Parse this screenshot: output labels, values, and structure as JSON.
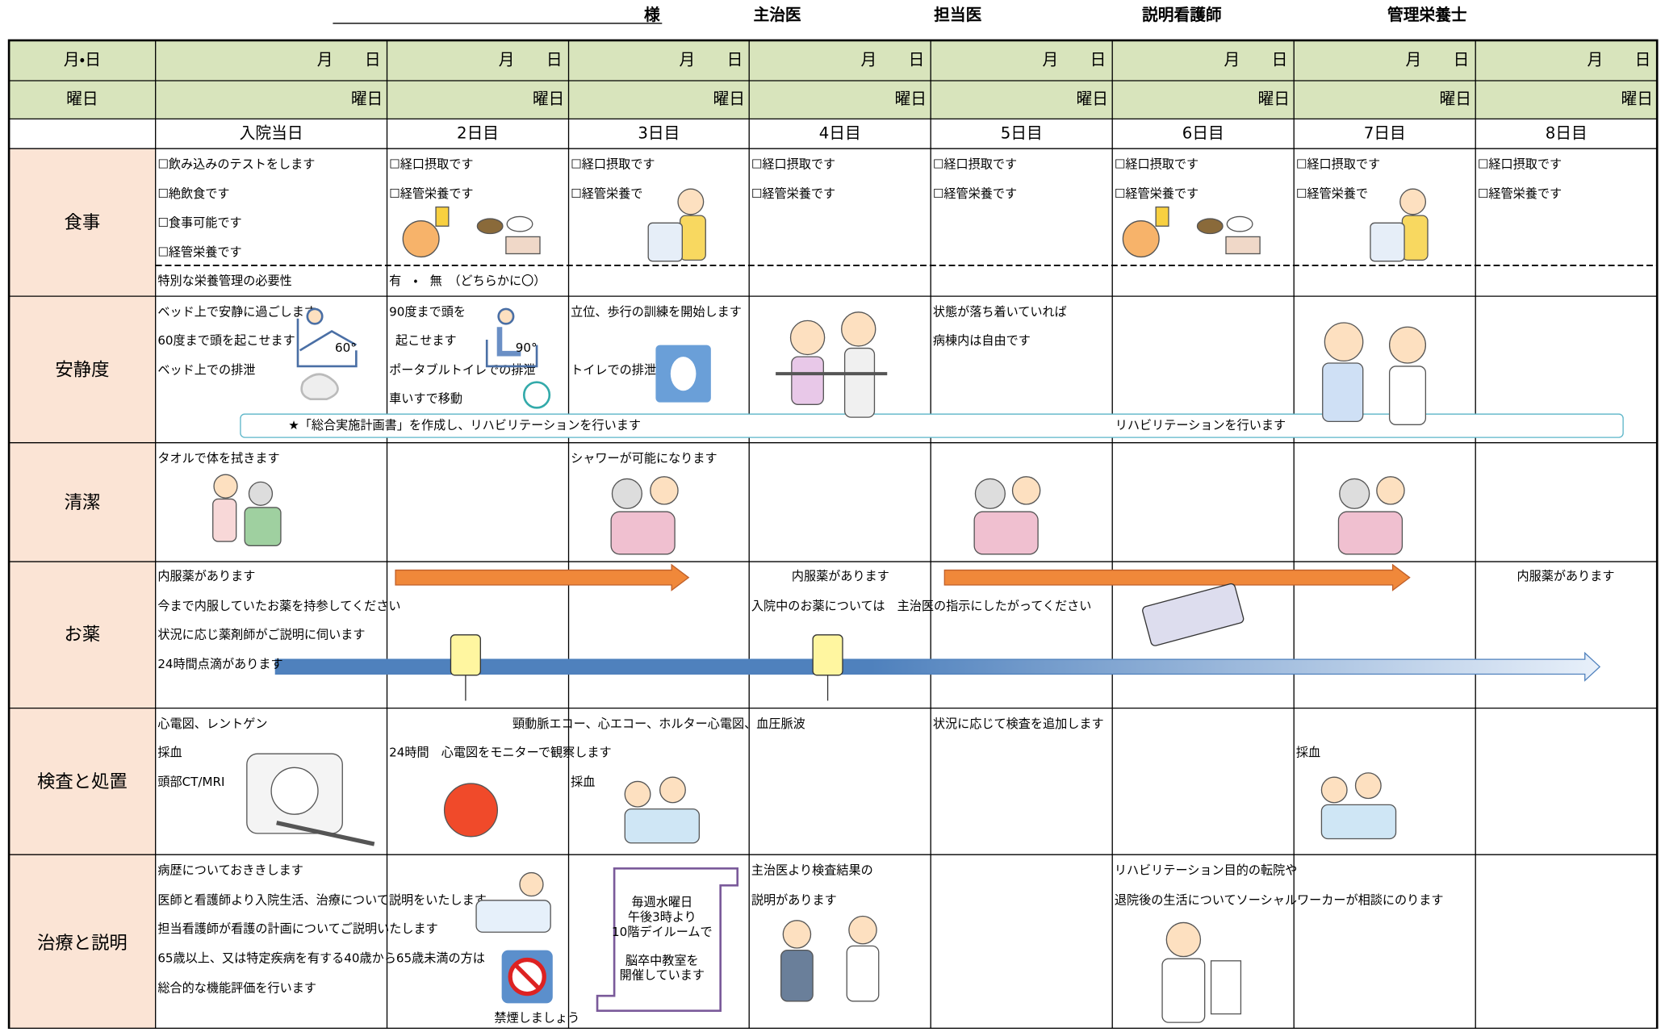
{
  "header": {
    "patient_suffix": "様",
    "doctor": "主治医",
    "physician": "担当医",
    "nurse": "説明看護師",
    "dietitian": "管理栄養士"
  },
  "table": {
    "date_label": "月・日",
    "weekday_label": "曜日",
    "columns": [
      {
        "date": "月　　日",
        "weekday": "曜日",
        "day": "入院当日"
      },
      {
        "date": "月　　日",
        "weekday": "曜日",
        "day": "2日目"
      },
      {
        "date": "月　　日",
        "weekday": "曜日",
        "day": "3日目"
      },
      {
        "date": "月　　日",
        "weekday": "曜日",
        "day": "4日目"
      },
      {
        "date": "月　　日",
        "weekday": "曜日",
        "day": "5日目"
      },
      {
        "date": "月　　日",
        "weekday": "曜日",
        "day": "6日目"
      },
      {
        "date": "月　　日",
        "weekday": "曜日",
        "day": "7日目"
      },
      {
        "date": "月　　日",
        "weekday": "曜日",
        "day": "8日目"
      }
    ],
    "meal": {
      "label": "食事",
      "cells": [
        [
          "☐飲み込みのテストをします",
          "☐絶飲食です",
          "☐食事可能です",
          "☐経管栄養です"
        ],
        [
          "☐経口摂取です",
          "☐経管栄養です"
        ],
        [
          "☐経口摂取です",
          "☐経管栄養で"
        ],
        [
          "☐経口摂取です",
          "☐経管栄養です"
        ],
        [
          "☐経口摂取です",
          "☐経管栄養です"
        ],
        [
          "☐経口摂取です",
          "☐経管栄養です"
        ],
        [
          "☐経口摂取です",
          "☐経管栄養で"
        ],
        [
          "☐経口摂取です",
          "☐経管栄養です"
        ]
      ],
      "nutrition_label": "特別な栄養管理の必要性",
      "nutrition_choice": "有　・　無　（どちらかに〇）"
    },
    "rest": {
      "label": "安静度",
      "day1": [
        "ベッド上で安静に過ごします",
        "60度まで頭を起こせます",
        "ベッド上での排泄"
      ],
      "day2": [
        "90度まで頭を",
        "起こせます",
        "ポータブルトイレでの排泄",
        "車いすで移動"
      ],
      "day3": [
        "立位、歩行の訓練を開始します",
        "トイレでの排泄"
      ],
      "day5": [
        "状態が落ち着いていれば",
        "病棟内は自由です"
      ],
      "angles": [
        "60°",
        "90°"
      ],
      "banner_start": "★「総合実施計画書」を作成し、リハビリテーションを行います",
      "banner_end": "リハビリテーションを行います"
    },
    "hygiene": {
      "label": "清潔",
      "day1": "タオルで体を拭きます",
      "day3": "シャワーが可能になります"
    },
    "medicine": {
      "label": "お薬",
      "day1": [
        "内服薬があります",
        "今まで内服していたお薬を持参してください",
        "状況に応じ薬剤師がご説明に伺います",
        "24時間点滴があります"
      ],
      "day4": [
        "内服薬があります",
        "入院中のお薬については　主治医の指示にしたがってください"
      ],
      "day8": "内服薬があります"
    },
    "exam": {
      "label": "検査と処置",
      "day1": [
        "心電図、レントゲン",
        "採血",
        "頭部CT/MRI"
      ],
      "span": "頸動脈エコー、心エコー、ホルター心電図、血圧脈波",
      "day2": "24時間　心電図をモニターで観察します",
      "day3": "採血",
      "day5": "状況に応じて検査を追加します",
      "day7": "採血"
    },
    "treatment": {
      "label": "治療と説明",
      "day1": [
        "病歴についておききします",
        "医師と看護師より入院生活、治療について説明をいたします",
        "担当看護師が看護の計画についてご説明いたします",
        "65歳以上、又は特定疾病を有する40歳から65歳未満の方は",
        "総合的な機能評価を行います"
      ],
      "no_smoking": "禁煙しましょう",
      "class_notice": [
        "毎週水曜日",
        "午後3時より",
        "10階デイルームで",
        "脳卒中教室を",
        "開催しています"
      ],
      "day4": [
        "主治医より検査結果の",
        "説明があります"
      ],
      "day6": [
        "リハビリテーション目的の転院や",
        "退院後の生活についてソーシャルワーカーが相談にのります"
      ]
    }
  }
}
